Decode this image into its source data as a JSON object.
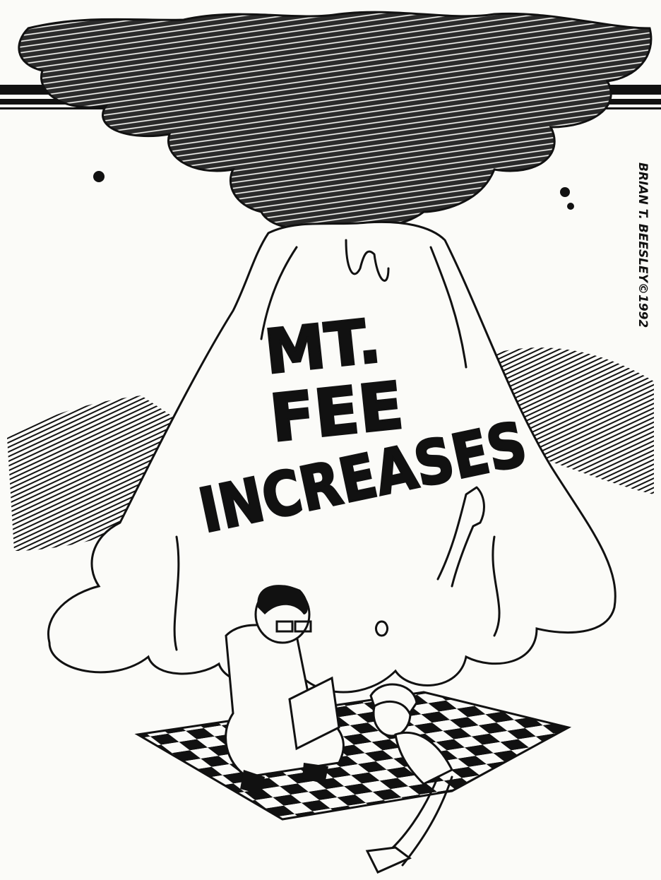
{
  "cartoon": {
    "label_lines": [
      "MT.",
      "FEE",
      "INCREASES"
    ],
    "signature": "BRIAN T. BEESLEY©1992"
  }
}
